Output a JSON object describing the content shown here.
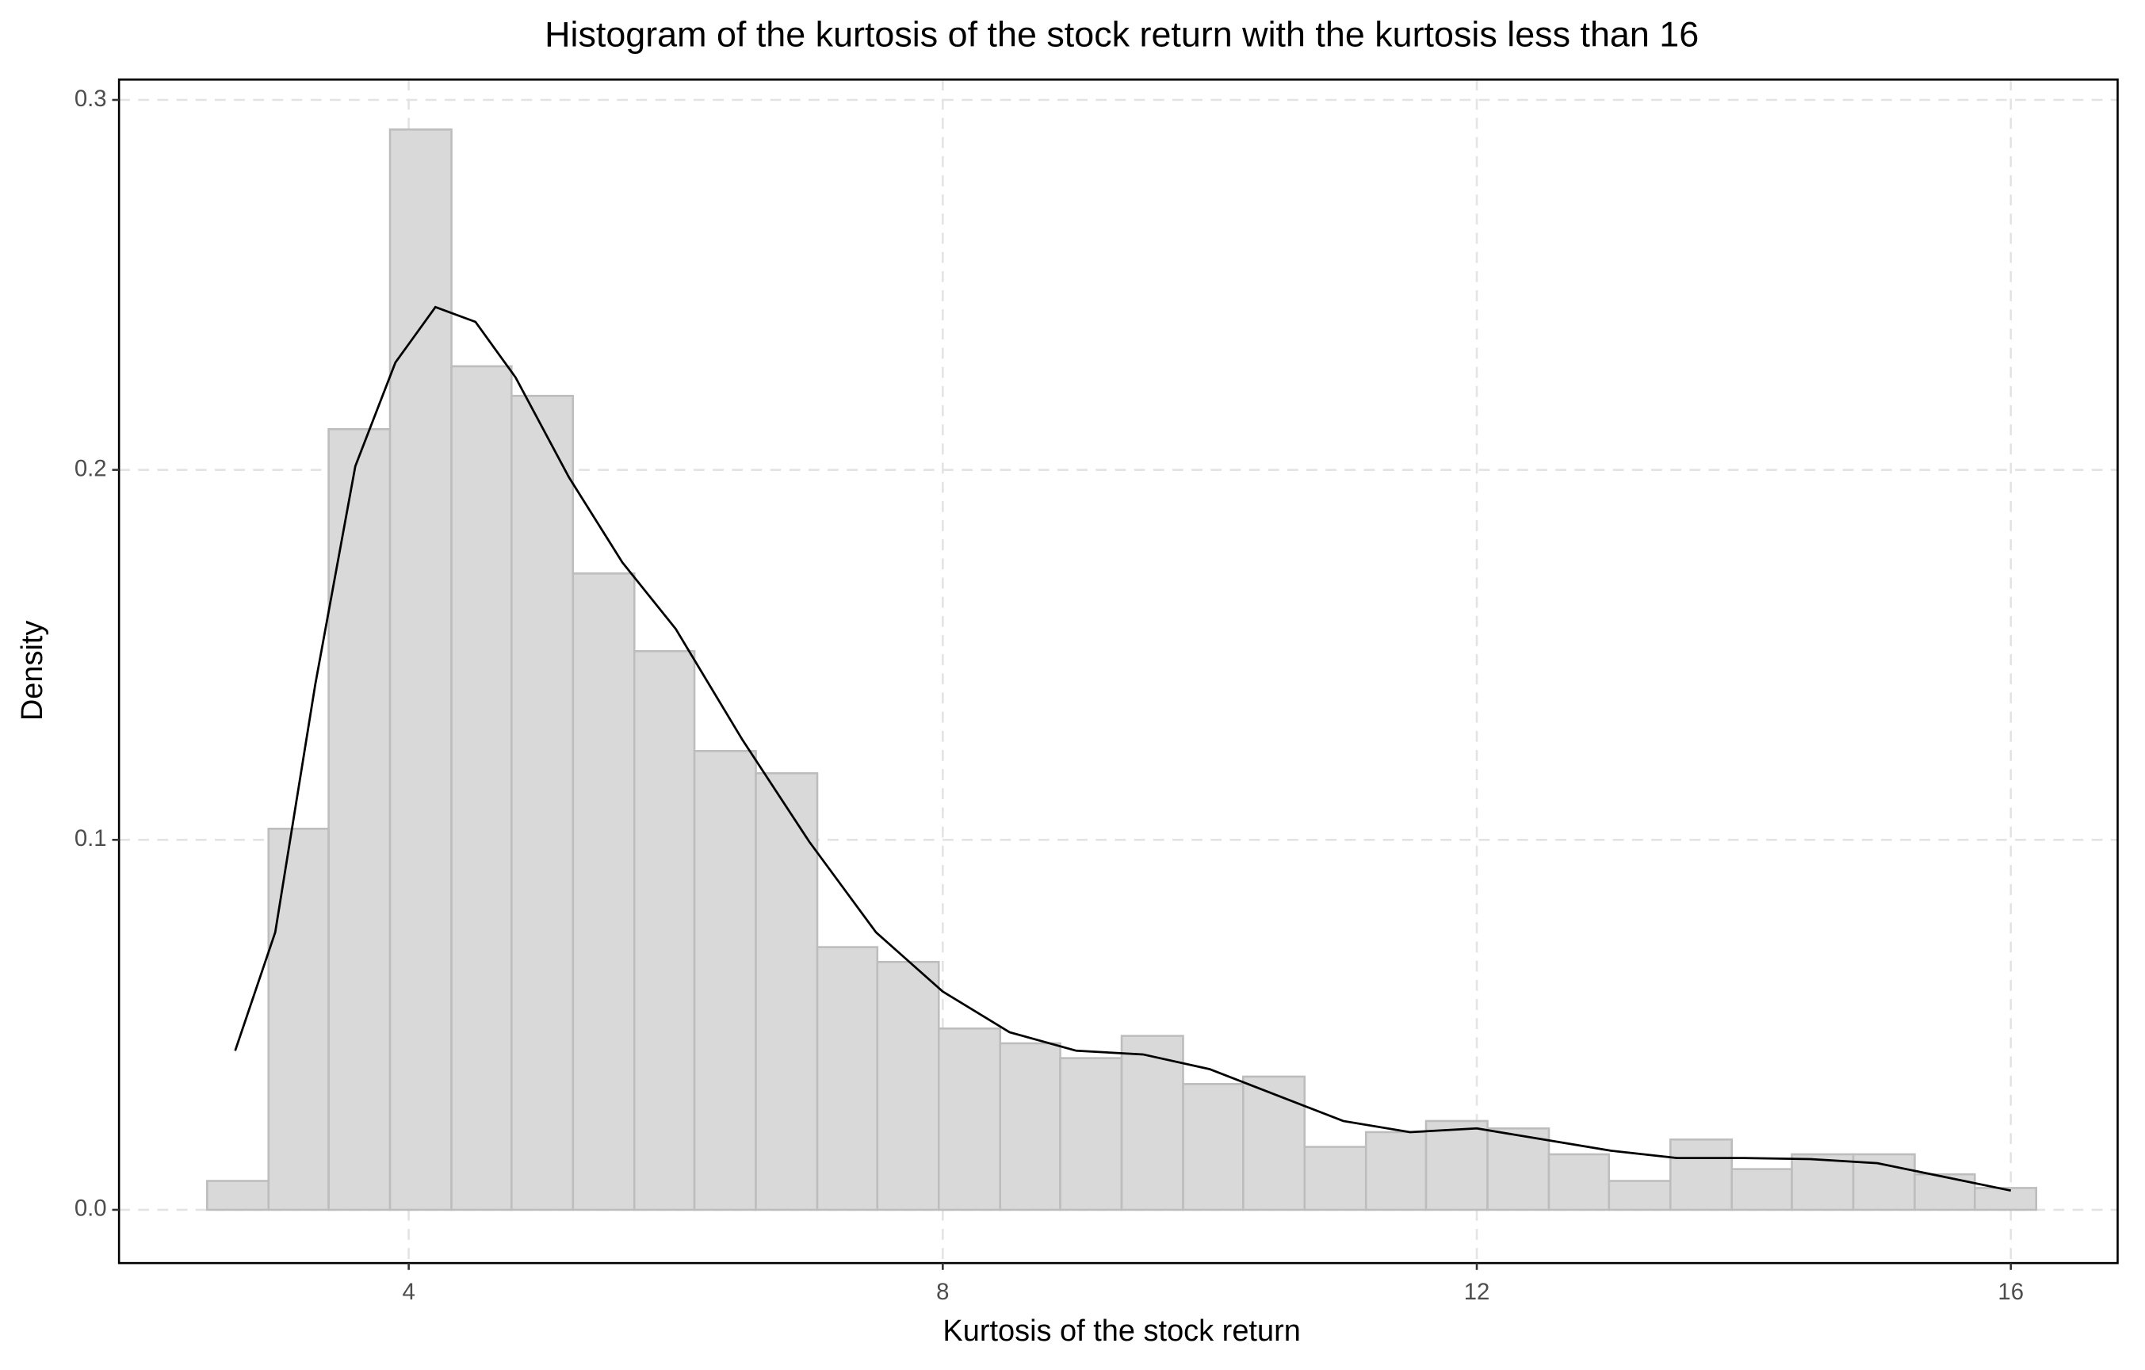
{
  "chart_data": {
    "type": "histogram",
    "title": "Histogram of the kurtosis of the stock return with the kurtosis less than 16",
    "x_label": "Kurtosis of the stock return",
    "y_label": "Density",
    "bins": [
      2.49,
      2.95,
      3.4,
      3.86,
      4.32,
      4.77,
      5.23,
      5.69,
      6.14,
      6.6,
      7.06,
      7.51,
      7.97,
      8.43,
      8.88,
      9.34,
      9.8,
      10.25,
      10.71,
      11.17,
      11.62,
      12.08,
      12.54,
      12.99,
      13.45,
      13.91,
      14.36,
      14.82,
      15.28,
      15.73,
      16.19
    ],
    "values": [
      0.0078,
      0.103,
      0.211,
      0.292,
      0.228,
      0.22,
      0.172,
      0.151,
      0.124,
      0.118,
      0.071,
      0.067,
      0.049,
      0.045,
      0.041,
      0.047,
      0.034,
      0.036,
      0.017,
      0.021,
      0.024,
      0.022,
      0.015,
      0.0078,
      0.019,
      0.011,
      0.015,
      0.015,
      0.0096,
      0.0059
    ],
    "color": "#d9d9d9",
    "edge_color": "#bdbdbd",
    "curve": {
      "color": "#000000",
      "x": [
        2.7,
        3.0,
        3.3,
        3.6,
        3.9,
        4.2,
        4.5,
        4.8,
        5.2,
        5.6,
        6.0,
        6.5,
        7.0,
        7.5,
        8.0,
        8.5,
        9.0,
        9.5,
        10.0,
        10.5,
        11.0,
        11.5,
        12.0,
        12.5,
        13.0,
        13.5,
        14.0,
        14.5,
        15.0,
        15.5,
        16.0
      ],
      "y": [
        0.043,
        0.075,
        0.142,
        0.201,
        0.229,
        0.244,
        0.24,
        0.225,
        0.198,
        0.175,
        0.157,
        0.127,
        0.0995,
        0.075,
        0.059,
        0.048,
        0.043,
        0.042,
        0.038,
        0.031,
        0.024,
        0.021,
        0.022,
        0.019,
        0.016,
        0.014,
        0.014,
        0.0137,
        0.0126,
        0.0089,
        0.0052
      ]
    },
    "xlim": [
      1.83,
      16.8
    ],
    "ylim": [
      -0.0144,
      0.3055
    ],
    "xticks": [
      4,
      8,
      12,
      16
    ],
    "yticks": [
      {
        "value": 0,
        "label": "0.0"
      },
      {
        "value": 0.1,
        "label": "0.1"
      },
      {
        "value": 0.2,
        "label": "0.2"
      },
      {
        "value": 0.3,
        "label": "0.3"
      }
    ],
    "grid": true
  }
}
